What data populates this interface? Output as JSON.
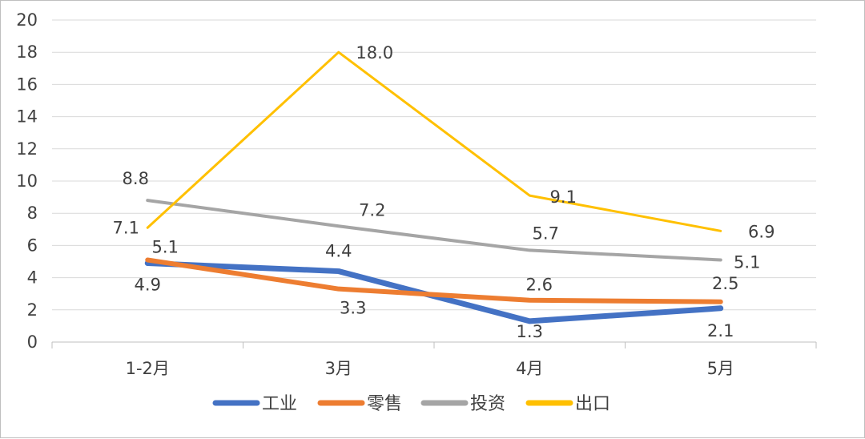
{
  "chart_data": {
    "type": "line",
    "categories": [
      "1-2月",
      "3月",
      "4月",
      "5月"
    ],
    "ylim": [
      0,
      20
    ],
    "yticks": [
      0,
      2,
      4,
      6,
      8,
      10,
      12,
      14,
      16,
      18,
      20
    ],
    "grid": true,
    "legend_position": "bottom",
    "series": [
      {
        "name": "工业",
        "values": [
          4.9,
          4.4,
          1.3,
          2.1
        ],
        "color": "#4472C4"
      },
      {
        "name": "零售",
        "values": [
          5.1,
          3.3,
          2.6,
          2.5
        ],
        "color": "#ED7D31"
      },
      {
        "name": "投资",
        "values": [
          8.8,
          7.2,
          5.7,
          5.1
        ],
        "color": "#A5A5A5"
      },
      {
        "name": "出口",
        "values": [
          7.1,
          18.0,
          9.1,
          6.9
        ],
        "color": "#FFC000"
      }
    ]
  }
}
